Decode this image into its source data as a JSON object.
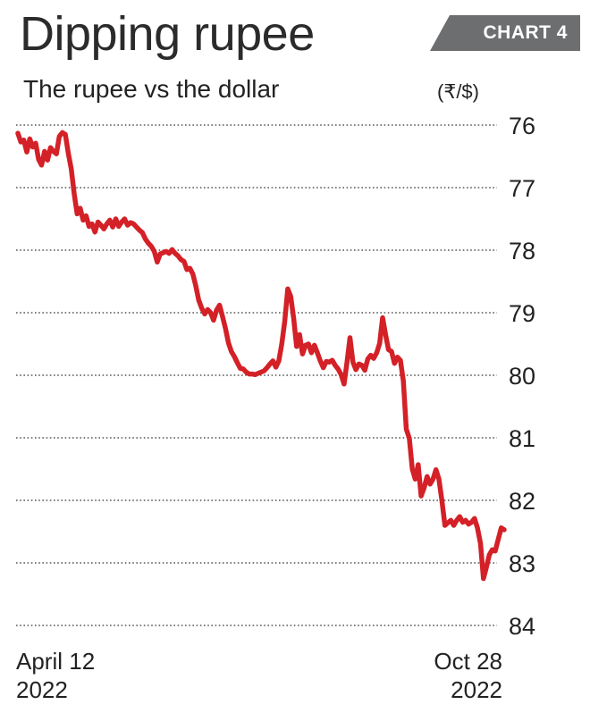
{
  "title": "Dipping rupee",
  "badge": "CHART 4",
  "subtitle": "The rupee vs the dollar",
  "unit": "(₹/$)",
  "colors": {
    "line": "#d42027",
    "badge": "#6d6e70",
    "grid": "#555555"
  },
  "x_labels": [
    {
      "line1": "April 12",
      "line2": "2022"
    },
    {
      "line1": "Oct 28",
      "line2": "2022"
    }
  ],
  "chart_data": {
    "type": "line",
    "title": "Dipping rupee",
    "subtitle": "The rupee vs the dollar",
    "ylabel": "(₹/$)",
    "xlabel": "",
    "y_axis_inverted": true,
    "ylim": [
      76,
      84
    ],
    "yticks": [
      76,
      77,
      78,
      79,
      80,
      81,
      82,
      83,
      84
    ],
    "grid": "horizontal dotted",
    "x_start": "2022-04-12",
    "x_end": "2022-10-28",
    "series": [
      {
        "values": [
          76.13,
          76.27,
          76.24,
          76.43,
          76.22,
          76.35,
          76.29,
          76.55,
          76.64,
          76.42,
          76.56,
          76.36,
          76.42,
          76.46,
          76.18,
          76.12,
          76.15,
          76.45,
          76.7,
          77.1,
          77.42,
          77.33,
          77.52,
          77.45,
          77.62,
          77.58,
          77.71,
          77.55,
          77.6,
          77.66,
          77.58,
          77.52,
          77.63,
          77.5,
          77.62,
          77.55,
          77.5,
          77.6,
          77.56,
          77.58,
          77.63,
          77.68,
          77.72,
          77.82,
          77.89,
          77.94,
          78.02,
          78.19,
          78.06,
          78.04,
          78.02,
          78.05,
          77.99,
          78.05,
          78.09,
          78.15,
          78.18,
          78.31,
          78.29,
          78.38,
          78.57,
          78.8,
          78.93,
          79.02,
          78.95,
          79.0,
          79.12,
          78.96,
          78.88,
          79.06,
          79.25,
          79.48,
          79.62,
          79.7,
          79.8,
          79.89,
          79.9,
          79.95,
          79.98,
          79.98,
          79.99,
          79.97,
          79.95,
          79.93,
          79.88,
          79.82,
          79.77,
          79.87,
          79.77,
          79.5,
          79.14,
          78.62,
          78.74,
          79.09,
          79.54,
          79.35,
          79.66,
          79.52,
          79.5,
          79.64,
          79.52,
          79.64,
          79.77,
          79.88,
          79.78,
          79.79,
          79.76,
          79.84,
          79.9,
          79.99,
          80.14,
          79.79,
          79.4,
          79.79,
          79.91,
          79.82,
          79.84,
          79.92,
          79.74,
          79.68,
          79.73,
          79.64,
          79.49,
          79.08,
          79.35,
          79.59,
          79.62,
          79.81,
          79.71,
          79.76,
          80.09,
          80.86,
          81.01,
          81.5,
          81.66,
          81.43,
          81.93,
          81.8,
          81.62,
          81.74,
          81.66,
          81.51,
          81.66,
          82.0,
          82.4,
          82.36,
          82.32,
          82.4,
          82.32,
          82.26,
          82.35,
          82.32,
          82.38,
          82.35,
          82.29,
          82.44,
          82.69,
          83.25,
          83.07,
          82.87,
          82.79,
          82.81,
          82.62,
          82.44,
          82.47
        ]
      }
    ]
  }
}
